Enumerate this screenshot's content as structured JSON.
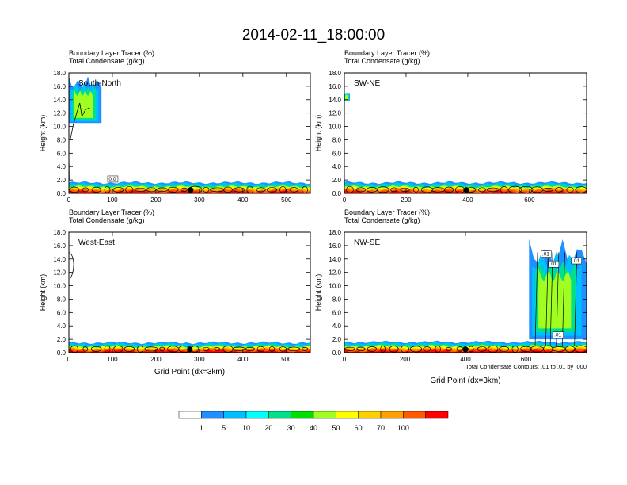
{
  "title": "2014-02-11_18:00:00",
  "colorbar": {
    "labels": [
      "1",
      "5",
      "10",
      "20",
      "30",
      "40",
      "50",
      "60",
      "70",
      "100"
    ],
    "colors": [
      "#ffffff",
      "#1e90ff",
      "#00bfff",
      "#00ffff",
      "#00e08a",
      "#00e000",
      "#a0ff20",
      "#ffff00",
      "#ffd000",
      "#ffa000",
      "#ff5a00",
      "#ff0000"
    ]
  },
  "chart_data": [
    {
      "type": "heatmap",
      "panel_label": "South-North",
      "field_label": "Boundary Layer Tracer",
      "field_units": "(%)",
      "contour_label": "Total Condensate",
      "contour_units": "(g/kg)",
      "ylabel": "Height (km)",
      "xlabel": "",
      "ylim": [
        0,
        18
      ],
      "xlim": [
        0,
        555
      ],
      "y_ticks": [
        "0.0",
        "2.0",
        "4.0",
        "6.0",
        "8.0",
        "10.0",
        "12.0",
        "14.0",
        "16.0",
        "18.0"
      ],
      "x_ticks": [
        {
          "v": 0,
          "t": "0"
        },
        {
          "v": 100,
          "t": "100"
        },
        {
          "v": 200,
          "t": "200"
        },
        {
          "v": 300,
          "t": "300"
        },
        {
          "v": 400,
          "t": "400"
        },
        {
          "v": 500,
          "t": "500"
        }
      ],
      "boundary_layer_top_km": 1.6,
      "marker_x": 280,
      "contour_labels": [
        {
          "x": 100,
          "y": 1.9,
          "t": "0.0"
        }
      ],
      "plume": {
        "x0": 0,
        "x1": 75,
        "top_km": 17.5,
        "bottom_km": 10.5
      }
    },
    {
      "type": "heatmap",
      "panel_label": "SW-NE",
      "field_label": "Boundary Layer Tracer",
      "field_units": "(%)",
      "contour_label": "Total Condensate",
      "contour_units": "(g/kg)",
      "ylabel": "Height (km)",
      "xlabel": "",
      "ylim": [
        0,
        18
      ],
      "xlim": [
        0,
        785
      ],
      "y_ticks": [
        "0.0",
        "2.0",
        "4.0",
        "6.0",
        "8.0",
        "10.0",
        "12.0",
        "14.0",
        "16.0",
        "18.0"
      ],
      "x_ticks": [
        {
          "v": 0,
          "t": "0"
        },
        {
          "v": 200,
          "t": "200"
        },
        {
          "v": 400,
          "t": "400"
        },
        {
          "v": 600,
          "t": "600"
        }
      ],
      "boundary_layer_top_km": 1.6,
      "marker_x": 395,
      "contour_labels": [],
      "plume": {
        "x0": 0,
        "x1": 18,
        "top_km": 15.2,
        "bottom_km": 13.8
      }
    },
    {
      "type": "heatmap",
      "panel_label": "West-East",
      "field_label": "Boundary Layer Tracer",
      "field_units": "(%)",
      "contour_label": "Total Condensate",
      "contour_units": "(g/kg)",
      "ylabel": "Height (km)",
      "xlabel": "Grid Point (dx=3km)",
      "ylim": [
        0,
        18
      ],
      "xlim": [
        0,
        555
      ],
      "y_ticks": [
        "0.0",
        "2.0",
        "4.0",
        "6.0",
        "8.0",
        "10.0",
        "12.0",
        "14.0",
        "16.0",
        "18.0"
      ],
      "x_ticks": [
        {
          "v": 0,
          "t": "0"
        },
        {
          "v": 100,
          "t": "100"
        },
        {
          "v": 200,
          "t": "200"
        },
        {
          "v": 300,
          "t": "300"
        },
        {
          "v": 400,
          "t": "400"
        },
        {
          "v": 500,
          "t": "500"
        }
      ],
      "boundary_layer_top_km": 1.5,
      "marker_x": 278,
      "contour_labels": [],
      "plume": null
    },
    {
      "type": "heatmap",
      "panel_label": "NW-SE",
      "field_label": "Boundary Layer Tracer",
      "field_units": "(%)",
      "contour_label": "Total Condensate",
      "contour_units": "(g/kg)",
      "ylabel": "Height (km)",
      "xlabel": "Grid Point (dx=3km)",
      "ylim": [
        0,
        18
      ],
      "xlim": [
        0,
        800
      ],
      "y_ticks": [
        "0.0",
        "2.0",
        "4.0",
        "6.0",
        "8.0",
        "10.0",
        "12.0",
        "14.0",
        "16.0",
        "18.0"
      ],
      "x_ticks": [
        {
          "v": 0,
          "t": "0"
        },
        {
          "v": 200,
          "t": "200"
        },
        {
          "v": 400,
          "t": "400"
        },
        {
          "v": 600,
          "t": "600"
        }
      ],
      "boundary_layer_top_km": 1.6,
      "marker_x": 400,
      "contour_labels": [
        {
          "x": 665,
          "y": 14.5,
          "t": ".01"
        },
        {
          "x": 690,
          "y": 13.0,
          "t": ".01"
        },
        {
          "x": 765,
          "y": 13.5,
          "t": ".01"
        },
        {
          "x": 705,
          "y": 2.4,
          "t": ".01"
        }
      ],
      "plume": {
        "x0": 610,
        "x1": 800,
        "top_km": 17.0,
        "bottom_km": 2.0
      },
      "footnote": "Total Condensate Contours: .01 to .01 by .000"
    }
  ]
}
